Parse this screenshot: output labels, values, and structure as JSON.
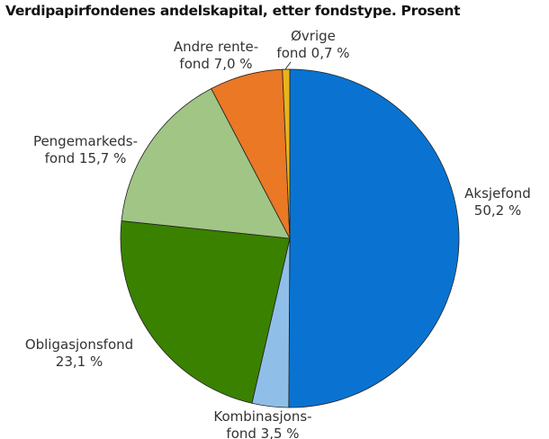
{
  "chart_data": {
    "type": "pie",
    "title": "Verdipapirfondenes andelskapital, etter fondstype. Prosent",
    "start": "top",
    "direction": "clockwise",
    "slices": [
      {
        "name": "Aksjefond",
        "value": 50.2,
        "label": [
          "Aksjefond",
          "50,2 %"
        ],
        "color": "#0a73d1"
      },
      {
        "name": "Kombinasjonsfond",
        "value": 3.5,
        "label": [
          "Kombinasjons-",
          "fond 3,5 %"
        ],
        "color": "#8fbfe9"
      },
      {
        "name": "Obligasjonsfond",
        "value": 23.1,
        "label": [
          "Obligasjonsfond",
          "23,1 %"
        ],
        "color": "#3a8100"
      },
      {
        "name": "Pengemarkedsfond",
        "value": 15.7,
        "label": [
          "Pengemarkeds-",
          "fond 15,7 %"
        ],
        "color": "#a1c585"
      },
      {
        "name": "Andre rentefond",
        "value": 7.0,
        "label": [
          "Andre rente-",
          "fond 7,0 %"
        ],
        "color": "#ea7825"
      },
      {
        "name": "Øvrige fond",
        "value": 0.7,
        "label": [
          "Øvrige",
          "fond 0,7 %"
        ],
        "color": "#e9b31c"
      }
    ]
  }
}
